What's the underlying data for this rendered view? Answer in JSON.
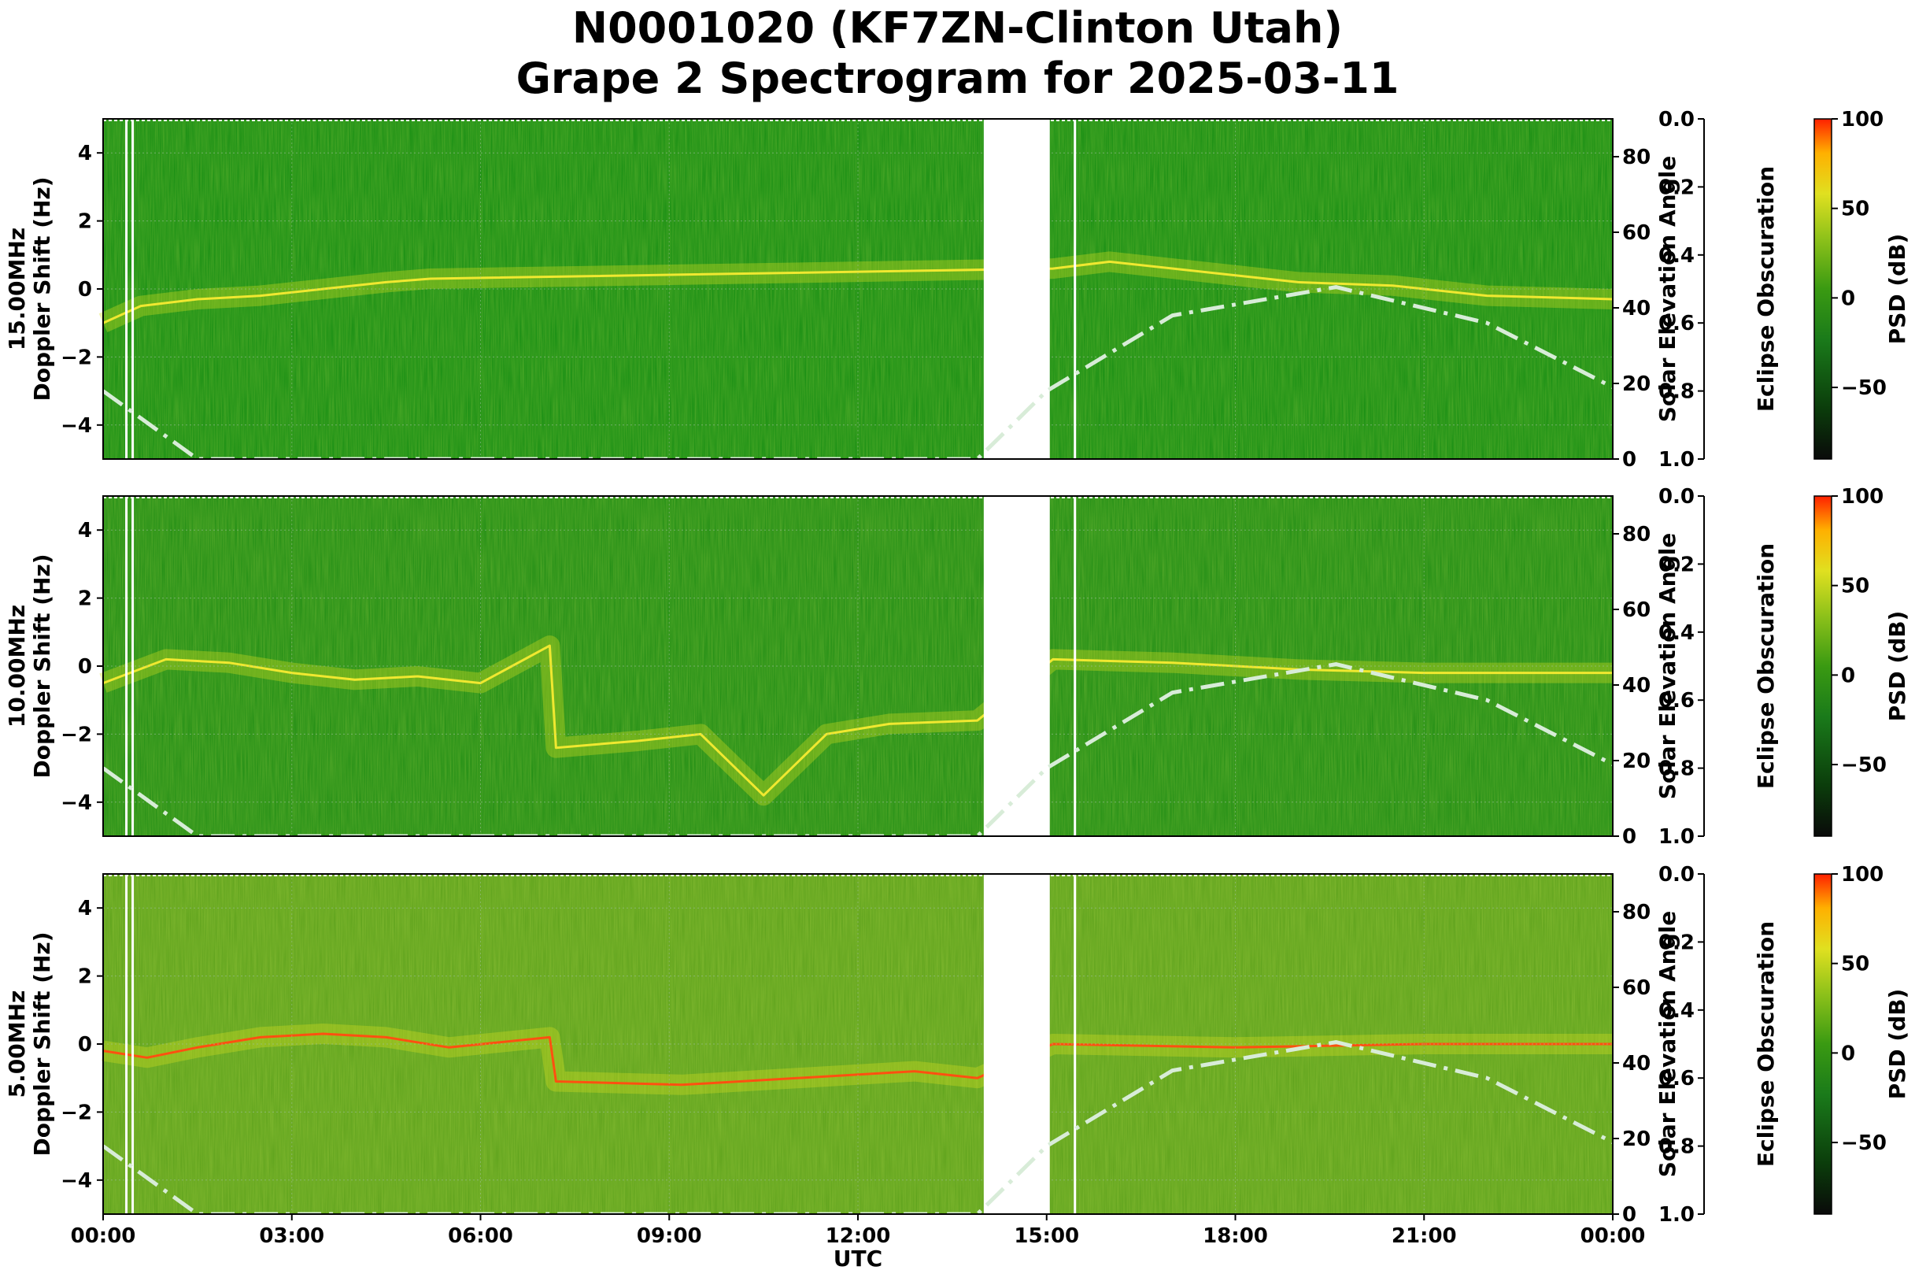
{
  "title_line1": "N0001020 (KF7ZN-Clinton Utah)",
  "title_line2": "Grape 2 Spectrogram for 2025-03-11",
  "chart_data": {
    "type": "heatmap",
    "xlabel": "UTC",
    "x_ticks": [
      "00:00",
      "03:00",
      "06:00",
      "09:00",
      "12:00",
      "15:00",
      "18:00",
      "21:00",
      "00:00"
    ],
    "x_range_hours": [
      0,
      24
    ],
    "y_ticks": [
      4,
      2,
      0,
      -2,
      -4
    ],
    "y_range_hz": [
      -5,
      5
    ],
    "solar_axis": {
      "label": "Solar Elevation Angle",
      "ticks": [
        80,
        60,
        40,
        20,
        0
      ],
      "range": [
        0,
        90
      ]
    },
    "eclipse_axis": {
      "label": "Eclipse Obscuration",
      "ticks": [
        "0.0",
        "0.2",
        "0.4",
        "0.6",
        "0.8",
        "1.0"
      ],
      "range": [
        0,
        1
      ]
    },
    "colorbar": {
      "label": "PSD (dB)",
      "ticks": [
        100,
        50,
        0,
        -50
      ],
      "range": [
        -90,
        100
      ],
      "colors": [
        "#0a0a0a",
        "#0b3d0b",
        "#1a7a1a",
        "#3a9a12",
        "#8fc21a",
        "#e0e020",
        "#ffb000",
        "#ff2000"
      ]
    },
    "data_gap_hours": [
      14.0,
      15.05
    ],
    "white_line_hours": [
      0.37,
      0.47,
      15.45
    ],
    "solar_elevation_curve": {
      "x_hours": [
        0,
        1.5,
        13.9,
        15.0,
        17.0,
        19.6,
        22.0,
        24.0
      ],
      "y_deg": [
        18,
        0,
        0,
        18,
        38,
        45.5,
        36,
        19
      ]
    },
    "panels": [
      {
        "ylabel_freq": "15.00MHz",
        "ylabel": "Doppler Shift (Hz)",
        "background": "#0f8a10",
        "doppler_trace": {
          "x_hours": [
            0,
            0.6,
            1.5,
            2.5,
            3.5,
            4.5,
            5.2,
            15.1,
            16.0,
            17.5,
            19.0,
            20.5,
            22.0,
            24.0
          ],
          "y_hz": [
            -1.0,
            -0.5,
            -0.3,
            -0.2,
            0,
            0.2,
            0.3,
            0.6,
            0.8,
            0.5,
            0.2,
            0.1,
            -0.2,
            -0.3
          ]
        }
      },
      {
        "ylabel_freq": "10.00MHz",
        "ylabel": "Doppler Shift (Hz)",
        "background": "#1a8a12",
        "doppler_trace": {
          "x_hours": [
            0,
            1.0,
            2.0,
            3.0,
            4.0,
            5.0,
            6.0,
            7.1,
            7.2,
            8.5,
            9.5,
            10.5,
            11.5,
            12.5,
            13.9,
            15.1,
            17.0,
            19.0,
            21.0,
            24.0
          ],
          "y_hz": [
            -0.5,
            0.2,
            0.1,
            -0.2,
            -0.4,
            -0.3,
            -0.5,
            0.6,
            -2.4,
            -2.2,
            -2.0,
            -3.8,
            -2.0,
            -1.7,
            -1.6,
            0.2,
            0.1,
            -0.1,
            -0.2,
            -0.2
          ]
        }
      },
      {
        "ylabel_freq": "5.00MHz",
        "ylabel": "Doppler Shift (Hz)",
        "background": "#5aa01a",
        "doppler_trace": {
          "x_hours": [
            0,
            0.7,
            1.5,
            2.5,
            3.5,
            4.5,
            5.5,
            7.1,
            7.2,
            9.2,
            12.9,
            13.9,
            15.1,
            18.0,
            21.0,
            24.0
          ],
          "y_hz": [
            -0.2,
            -0.4,
            -0.1,
            0.2,
            0.3,
            0.2,
            -0.1,
            0.2,
            -1.1,
            -1.2,
            -0.8,
            -1.0,
            0.0,
            -0.1,
            0.0,
            0.0
          ]
        }
      }
    ]
  }
}
